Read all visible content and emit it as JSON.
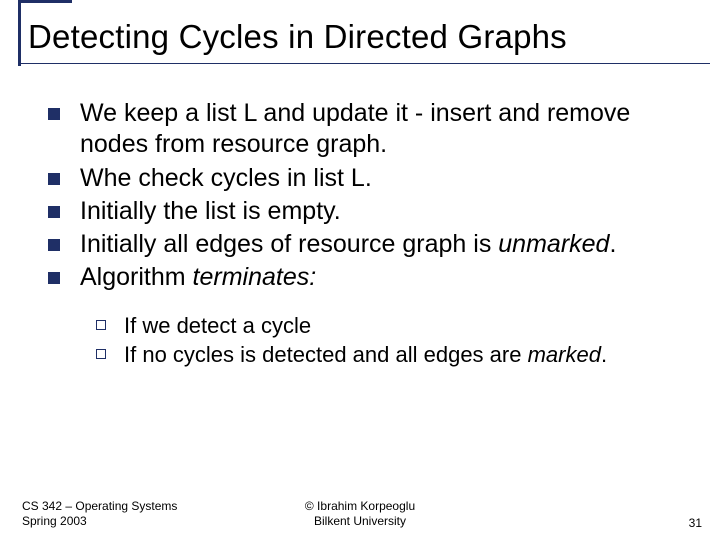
{
  "title": "Detecting Cycles in Directed Graphs",
  "bullets": [
    {
      "text": "We keep a list L and update it  - insert and remove nodes from resource graph."
    },
    {
      "text": "Whe check cycles in list L."
    },
    {
      "text": "Initially the list is empty."
    },
    {
      "text_pre": "Initially all edges of resource graph is ",
      "italic": "unmarked",
      "text_post": "."
    },
    {
      "text_pre": "Algorithm ",
      "italic": "terminates:",
      "text_post": ""
    }
  ],
  "sub_bullets": [
    {
      "text": "If we detect a cycle"
    },
    {
      "text_pre": "If no cycles is detected and all edges are ",
      "italic": "marked",
      "text_post": "."
    }
  ],
  "footer": {
    "left_line1": "CS 342 – Operating Systems",
    "left_line2": "Spring 2003",
    "center_line1": "© Ibrahim Korpeoglu",
    "center_line2": "Bilkent University",
    "page": "31"
  },
  "colors": {
    "accent": "#1f2f66",
    "text": "#000000",
    "background": "#ffffff"
  }
}
